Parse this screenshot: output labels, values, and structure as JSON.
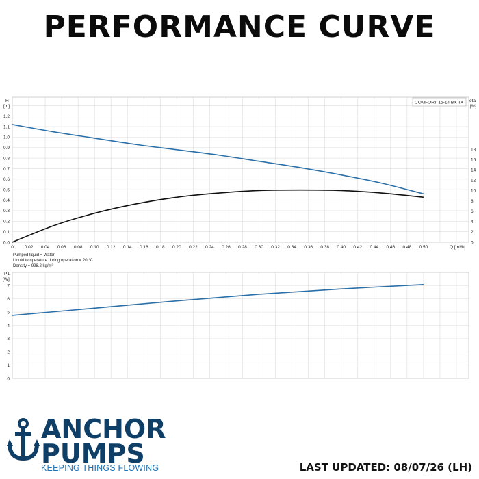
{
  "page_title": "PERFORMANCE CURVE",
  "brand": {
    "line1": "ANCHOR",
    "line2": "PUMPS",
    "tagline": "KEEPING THINGS FLOWING",
    "logo_icon": "anchor-icon",
    "color": "#0f3e66",
    "tagline_color": "#1f74b8"
  },
  "last_updated": "LAST UPDATED: 08/07/26 (LH)",
  "liquid_notes": {
    "line1": "Pumped liquid = Water",
    "line2": "Liquid temperature during operation = 20 °C",
    "line3": "Density = 998.2 kg/m³"
  },
  "chart_data": [
    {
      "type": "line",
      "model_label": "COMFORT 15-14 BX TA",
      "ylabel": "H",
      "yunit": "[m]",
      "y2label": "eta",
      "y2unit": "[%]",
      "xlabel": "Q [m³/h]",
      "xlim": [
        0,
        0.5
      ],
      "ylim": [
        0,
        1.2
      ],
      "y2lim": [
        0,
        18
      ],
      "grid": true,
      "x_ticks": [
        "0",
        "0.02",
        "0.04",
        "0.06",
        "0.08",
        "0.10",
        "0.12",
        "0.14",
        "0.16",
        "0.18",
        "0.20",
        "0.22",
        "0.24",
        "0.26",
        "0.28",
        "0.30",
        "0.32",
        "0.34",
        "0.36",
        "0.38",
        "0.40",
        "0.42",
        "0.44",
        "0.46",
        "0.48",
        "0.50"
      ],
      "y_ticks": [
        "0.0",
        "0.1",
        "0.2",
        "0.3",
        "0.4",
        "0.5",
        "0.6",
        "0.7",
        "0.8",
        "0.9",
        "1.0",
        "1.1",
        "1.2"
      ],
      "y2_ticks": [
        "0",
        "2",
        "4",
        "6",
        "8",
        "10",
        "12",
        "14",
        "16",
        "18"
      ],
      "series": [
        {
          "axis": "left",
          "color": "#2a6fa8",
          "x": [
            0,
            0.05,
            0.1,
            0.15,
            0.2,
            0.25,
            0.3,
            0.35,
            0.4,
            0.45,
            0.5
          ],
          "values": [
            1.12,
            1.05,
            0.99,
            0.93,
            0.88,
            0.83,
            0.77,
            0.71,
            0.64,
            0.56,
            0.46
          ]
        },
        {
          "axis": "right",
          "color": "#111111",
          "x": [
            0,
            0.05,
            0.1,
            0.15,
            0.2,
            0.25,
            0.3,
            0.35,
            0.4,
            0.45,
            0.5
          ],
          "values": [
            0,
            3.2,
            5.6,
            7.4,
            8.7,
            9.5,
            10.0,
            10.1,
            10.0,
            9.5,
            8.7
          ]
        }
      ]
    },
    {
      "type": "line",
      "ylabel": "P1",
      "yunit": "[W]",
      "xlim": [
        0,
        0.5
      ],
      "ylim": [
        0,
        8
      ],
      "grid": true,
      "y_ticks": [
        "0",
        "1",
        "2",
        "3",
        "4",
        "5",
        "6",
        "7"
      ],
      "series": [
        {
          "color": "#2a6fa8",
          "x": [
            0,
            0.1,
            0.2,
            0.3,
            0.4,
            0.5
          ],
          "values": [
            4.75,
            5.3,
            5.85,
            6.35,
            6.75,
            7.08
          ]
        }
      ]
    }
  ]
}
